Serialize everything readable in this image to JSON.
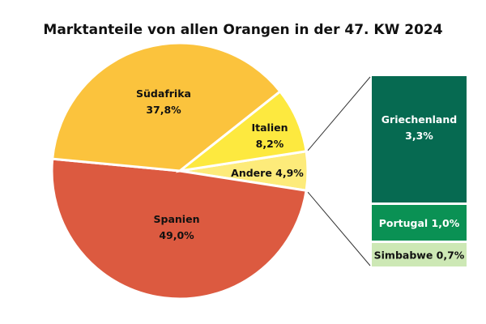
{
  "chart_data": {
    "type": "pie",
    "subtype": "bar-of-pie",
    "title": "Marktanteile von allen Orangen in der 47. KW 2024",
    "slices": [
      {
        "label": "Andere",
        "value": 4.9,
        "text": "Andere 4,9%",
        "color": "#FDEB7A"
      },
      {
        "label": "Spanien",
        "value": 49.0,
        "text": "49,0%",
        "color": "#DC5A40"
      },
      {
        "label": "Südafrika",
        "value": 37.8,
        "text": "37,8%",
        "color": "#FBC33D"
      },
      {
        "label": "Italien",
        "value": 8.2,
        "text": "8,2%",
        "color": "#FDE93F"
      }
    ],
    "breakdown_of": "Andere",
    "breakdown": [
      {
        "label": "Griechenland",
        "value": 3.3,
        "text": "3,3%",
        "color": "#066A51",
        "text_color": "#FFFFFF"
      },
      {
        "label": "Portugal",
        "value": 1.0,
        "text": "Portugal 1,0%",
        "color": "#0A9154",
        "text_color": "#FFFFFF"
      },
      {
        "label": "Simbabwe",
        "value": 0.7,
        "text": "Simbabwe 0,7%",
        "color": "#CDE8B5",
        "text_color": "#111111"
      }
    ]
  }
}
